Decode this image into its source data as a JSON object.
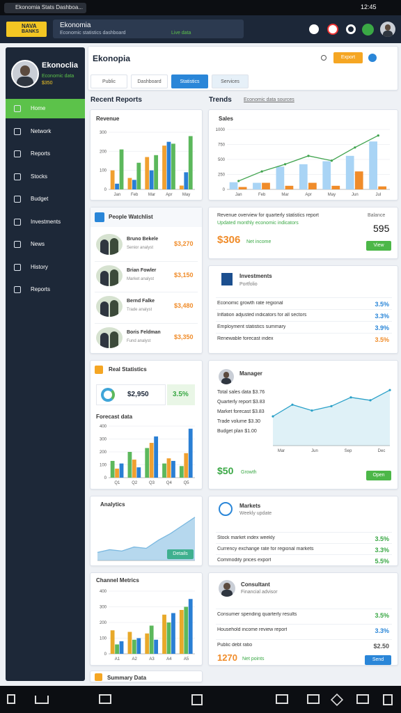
{
  "status_bar": {
    "tab": "Ekonomia Stats Dashboa...",
    "time": "12:45"
  },
  "header": {
    "logo_top": "NAVA",
    "logo_bottom": "BANKS",
    "search_title": "Ekonomia",
    "search_sub": "Economic statistics dashboard",
    "search_tag": "Live data"
  },
  "sidebar": {
    "name": "Ekonoclia",
    "role": "Economic data",
    "amount": "$350",
    "items": [
      "Home",
      "Network",
      "Reports",
      "Stocks",
      "Budget",
      "Investments",
      "News",
      "History",
      "Reports"
    ]
  },
  "toolbar": {
    "title": "Ekonopia",
    "action": "Export",
    "tabs": [
      "Public",
      "Dashboard",
      "Statistics",
      "Services"
    ]
  },
  "left": {
    "heading": "Recent Reports",
    "revenue_title": "Revenue",
    "people": {
      "title": "People Watchlist",
      "rows": [
        {
          "name": "Bruno Bekele",
          "sub": "Senior analyst",
          "value": "$3,270"
        },
        {
          "name": "Brian Fowler",
          "sub": "Market analyst",
          "value": "$3,150"
        },
        {
          "name": "Bernd Falke",
          "sub": "Trade analyst",
          "value": "$3,480"
        },
        {
          "name": "Boris Feldman",
          "sub": "Fund analyst",
          "value": "$3,350"
        }
      ]
    },
    "stats": {
      "title": "Real Statistics",
      "amount": "$2,950",
      "change": "3.5%",
      "chart_label": "Forecast data"
    },
    "analytics": {
      "title": "Analytics",
      "button": "Details"
    },
    "channel_title": "Channel Metrics",
    "summary_title": "Summary Data"
  },
  "right": {
    "heading": "Trends",
    "heading_link": "Economic data sources",
    "trends_title": "Sales",
    "overview": {
      "line1": "Revenue overview for quarterly statistics report",
      "line2": "Updated monthly economic indicators",
      "side_label": "Balance",
      "big": "595",
      "amount": "$306",
      "amount_note": "Net income",
      "button": "View"
    },
    "investments": {
      "title": "Investments",
      "sub": "Portfolio",
      "rows": [
        {
          "text": "Economic growth rate regional",
          "value": "3.5%",
          "color": "#2a86d8"
        },
        {
          "text": "Inflation adjusted indicators for all sectors",
          "value": "3.3%",
          "color": "#2a86d8"
        },
        {
          "text": "Employment statistics summary",
          "value": "3.9%",
          "color": "#2a86d8"
        },
        {
          "text": "Renewable forecast index",
          "value": "3.5%",
          "color": "#f08c2a"
        }
      ]
    },
    "manager": {
      "title": "Manager",
      "rows": [
        "Total sales data $3.76",
        "Quarterly report $3.83",
        "Market forecast $3.83",
        "Trade volume $3.30",
        "Budget plan $1.00"
      ],
      "amount": "$50",
      "amount_note": "Growth",
      "button": "Open"
    },
    "markets": {
      "title": "Markets",
      "sub": "Weekly update",
      "rows": [
        {
          "text": "Stock market index weekly",
          "value": "3.5%",
          "color": "#3aa845"
        },
        {
          "text": "Currency exchange rate for regional markets",
          "value": "3.3%",
          "color": "#3aa845"
        },
        {
          "text": "Commodity prices export",
          "value": "5.5%",
          "color": "#3aa845"
        }
      ]
    },
    "advisor": {
      "title": "Consultant",
      "sub": "Financial advisor",
      "rows": [
        {
          "text": "Consumer spending quarterly results",
          "value": "3.5%",
          "color": "#3aa845"
        },
        {
          "text": "Household income review report",
          "value": "3.3%",
          "color": "#2a86d8"
        },
        {
          "text": "Public debt ratio",
          "value": "$2.50",
          "color": "#555555"
        }
      ],
      "amount": "1270",
      "amount_note": "Net points",
      "button": "Send"
    }
  },
  "charts": {
    "revenue": {
      "type": "bar",
      "categories": [
        "Jan",
        "Feb",
        "Mar",
        "Apr",
        "May"
      ],
      "ylim": [
        0,
        300
      ],
      "yticks": [
        0,
        100,
        200,
        300
      ],
      "series": [
        {
          "color": "#f0a030",
          "values": [
            100,
            60,
            170,
            230,
            20
          ]
        },
        {
          "color": "#2a7fd4",
          "values": [
            30,
            50,
            100,
            250,
            90
          ]
        },
        {
          "color": "#5cb85c",
          "values": [
            210,
            140,
            180,
            240,
            280
          ]
        }
      ]
    },
    "trends": {
      "type": "bar",
      "categories": [
        "Jan",
        "Feb",
        "Mar",
        "Apr",
        "May",
        "Jun",
        "Jul"
      ],
      "ylim": [
        0,
        1000
      ],
      "yticks": [
        0,
        250,
        500,
        750,
        1000
      ],
      "series": [
        {
          "color": "#a9d4f5",
          "values": [
            120,
            110,
            380,
            420,
            470,
            560,
            800
          ]
        },
        {
          "color": "#f08c2a",
          "values": [
            40,
            110,
            60,
            110,
            60,
            300,
            50
          ]
        },
        {
          "type": "line",
          "color": "#3fa34d",
          "values": [
            140,
            300,
            420,
            560,
            480,
            700,
            900
          ]
        }
      ]
    },
    "stats": {
      "type": "bar",
      "categories": [
        "Q1",
        "Q2",
        "Q3",
        "Q4",
        "Q5"
      ],
      "ylim": [
        0,
        400
      ],
      "yticks": [
        0,
        100,
        200,
        300,
        400
      ],
      "series": [
        {
          "color": "#5cb85c",
          "values": [
            130,
            200,
            230,
            110,
            90
          ]
        },
        {
          "color": "#f0a030",
          "values": [
            70,
            140,
            270,
            150,
            190
          ]
        },
        {
          "color": "#2a7fd4",
          "values": [
            110,
            80,
            320,
            130,
            380
          ]
        }
      ]
    },
    "analytics": {
      "type": "area",
      "ylim": [
        0,
        350
      ],
      "color": "#7ab8e0",
      "values": [
        60,
        80,
        70,
        100,
        90,
        150,
        200,
        260,
        320
      ]
    },
    "manager": {
      "type": "line",
      "categories": [
        "Mar",
        null,
        "Jun",
        null,
        "Sep",
        null,
        "Dec"
      ],
      "ylim": [
        0,
        400
      ],
      "color": "#2aa0c8",
      "values": [
        200,
        280,
        240,
        270,
        330,
        310,
        380
      ]
    },
    "channel": {
      "type": "bar",
      "categories": [
        "A1",
        "A2",
        "A3",
        "A4",
        "A5"
      ],
      "ylim": [
        0,
        400
      ],
      "yticks": [
        0,
        100,
        200,
        300,
        400
      ],
      "series": [
        {
          "color": "#e8a92a",
          "values": [
            150,
            140,
            130,
            250,
            280
          ]
        },
        {
          "color": "#5cb85c",
          "values": [
            60,
            90,
            180,
            200,
            300
          ]
        },
        {
          "color": "#2a7fd4",
          "values": [
            80,
            100,
            90,
            260,
            350
          ]
        }
      ]
    }
  }
}
